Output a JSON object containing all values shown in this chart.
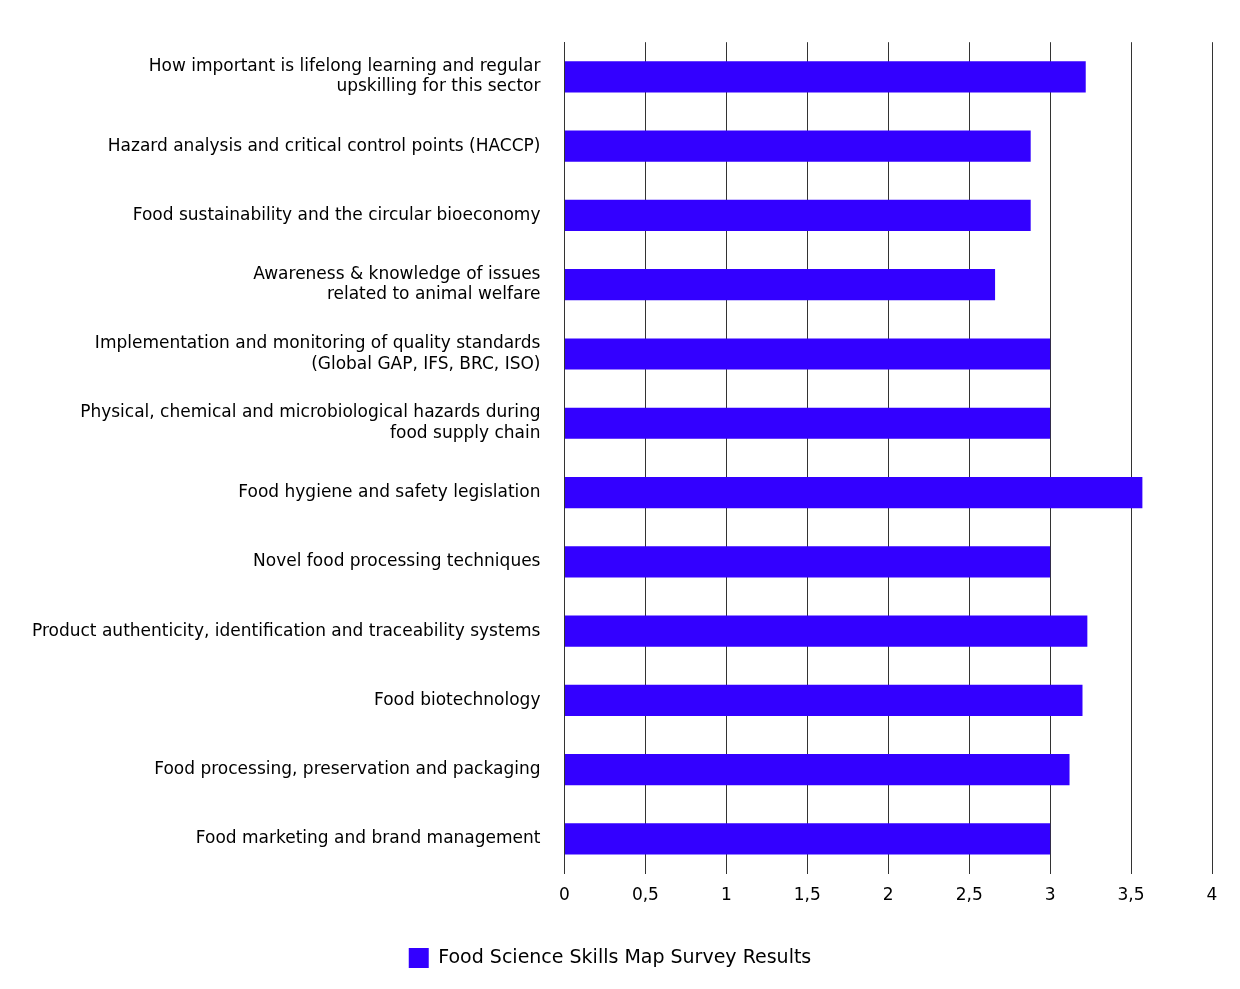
{
  "chart_data": {
    "type": "bar",
    "orientation": "horizontal",
    "categories": [
      "How important is lifelong learning and regular\nupskilling for this sector",
      "Hazard analysis and critical control points (HACCP)",
      "Food sustainability and the circular bioeconomy",
      "Awareness & knowledge of issues\nrelated to animal welfare",
      "Implementation and monitoring of quality standards\n(Global GAP, IFS, BRC, ISO)",
      "Physical, chemical and microbiological hazards during\nfood supply chain",
      "Food hygiene and safety legislation",
      "Novel food processing techniques",
      "Product authenticity, identification and traceability systems",
      "Food biotechnology",
      "Food processing, preservation and packaging",
      "Food marketing and brand management"
    ],
    "series": [
      {
        "name": "Food Science Skills Map Survey Results",
        "color": "#3300ff",
        "values": [
          3.22,
          2.88,
          2.88,
          2.66,
          3.0,
          3.0,
          3.57,
          3.0,
          3.23,
          3.2,
          3.12,
          3.0
        ]
      }
    ],
    "xlim": [
      0,
      4
    ],
    "xticks": [
      0,
      {
        "value": 0.5,
        "label": "0,5"
      },
      1,
      {
        "value": 1.5,
        "label": "1,5"
      },
      2,
      {
        "value": 2.5,
        "label": "2,5"
      },
      3,
      {
        "value": 3.5,
        "label": "3,5"
      },
      4
    ],
    "grid": "x",
    "legend": "bottom"
  }
}
